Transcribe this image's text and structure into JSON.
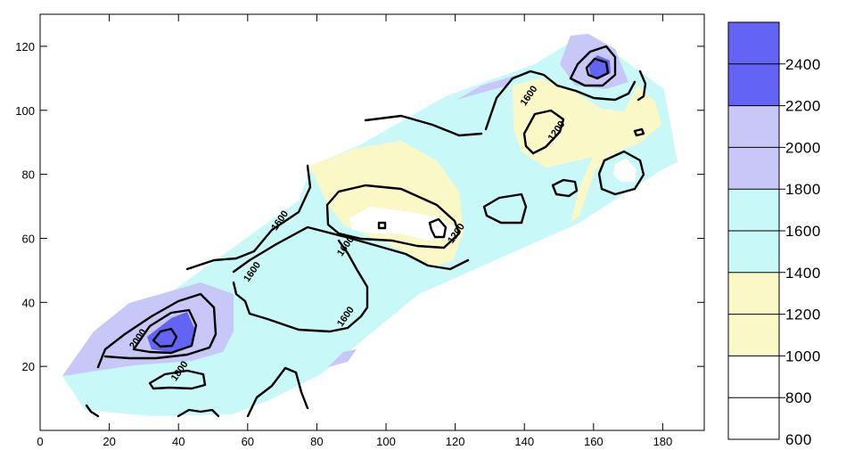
{
  "chart_data": {
    "type": "heatmap",
    "subtype": "filled-contour",
    "title": "",
    "xlabel": "",
    "ylabel": "",
    "xlim": [
      0,
      192
    ],
    "ylim": [
      0,
      130
    ],
    "x_ticks": [
      0,
      20,
      40,
      60,
      80,
      100,
      120,
      140,
      160,
      180
    ],
    "y_ticks": [
      20,
      40,
      60,
      80,
      100,
      120
    ],
    "x_tick_labels": [
      "0",
      "20",
      "40",
      "60",
      "80",
      "100",
      "120",
      "140",
      "160",
      "180"
    ],
    "y_tick_labels": [
      "20",
      "40",
      "60",
      "80",
      "100",
      "120"
    ],
    "grid": false,
    "legend_position": "right",
    "color_levels": [
      {
        "from": 600,
        "to": 1000,
        "color": "#ffffff"
      },
      {
        "from": 1000,
        "to": 1400,
        "color": "#fbf8c8"
      },
      {
        "from": 1400,
        "to": 1800,
        "color": "#c9f8f8"
      },
      {
        "from": 1800,
        "to": 2200,
        "color": "#c8c8f8"
      },
      {
        "from": 2200,
        "to": 2600,
        "color": "#6464f4"
      }
    ],
    "legend_labels": [
      "2400",
      "2200",
      "2000",
      "1800",
      "1600",
      "1400",
      "1200",
      "1000",
      "800",
      "600"
    ],
    "contour_labels": [
      {
        "text": "1600",
        "x": 70,
        "y": 65
      },
      {
        "text": "1600",
        "x": 62,
        "y": 49
      },
      {
        "text": "1600",
        "x": 89,
        "y": 57
      },
      {
        "text": "1600",
        "x": 89,
        "y": 35
      },
      {
        "text": "1200",
        "x": 121,
        "y": 61
      },
      {
        "text": "1600",
        "x": 142,
        "y": 104
      },
      {
        "text": "1200",
        "x": 150,
        "y": 93
      },
      {
        "text": "2000",
        "x": 29,
        "y": 28
      },
      {
        "text": "1800",
        "x": 41,
        "y": 18
      }
    ]
  }
}
